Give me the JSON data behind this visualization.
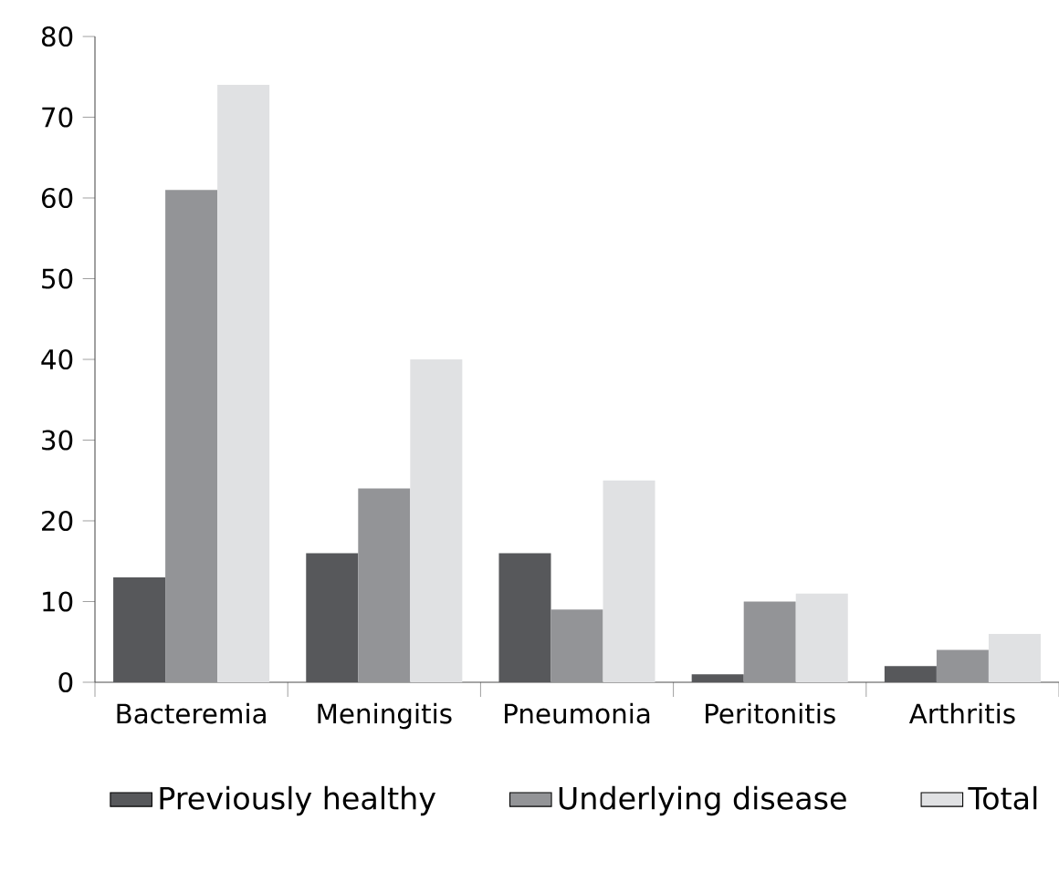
{
  "chart_data": {
    "type": "bar",
    "categories": [
      "Bacteremia",
      "Meningitis",
      "Pneumonia",
      "Peritonitis",
      "Arthritis"
    ],
    "series": [
      {
        "name": "Previously healthy",
        "color": "#57585b",
        "values": [
          13,
          16,
          16,
          1,
          2
        ]
      },
      {
        "name": "Underlying disease",
        "color": "#939497",
        "values": [
          61,
          24,
          9,
          10,
          4
        ]
      },
      {
        "name": "Total",
        "color": "#e0e1e3",
        "values": [
          74,
          40,
          25,
          11,
          6
        ]
      }
    ],
    "ylim": [
      0,
      80
    ],
    "yticks": [
      0,
      10,
      20,
      30,
      40,
      50,
      60,
      70,
      80
    ],
    "grid": false,
    "legend": "bottom"
  }
}
